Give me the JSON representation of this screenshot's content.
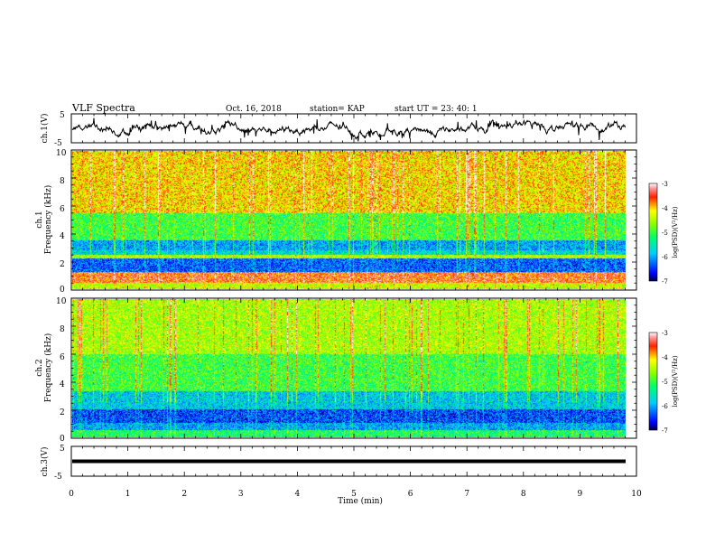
{
  "header": {
    "title": "VLF Spectra",
    "date": "Oct. 16, 2018",
    "station": "station= KAP",
    "start": "start  UT =   23: 40: 1"
  },
  "chart_data": [
    {
      "type": "line",
      "panel": "ch1-waveform",
      "ylabel": "ch.1(V)",
      "yticks": [
        "5",
        "-5"
      ],
      "ylim": [
        -5,
        5
      ],
      "xlim": [
        0,
        10
      ],
      "note_values": "noisy waveform fluctuating roughly between -3 and 3 V"
    },
    {
      "type": "heatmap",
      "panel": "ch1-spectrogram",
      "ylabel_top": "ch.1",
      "ylabel": "Frequency (kHz)",
      "yticks": [
        "0",
        "2",
        "4",
        "6",
        "8",
        "10"
      ],
      "ylim": [
        0,
        10
      ],
      "xlim": [
        0,
        9.8
      ],
      "colorbar": {
        "label": "log(PSD)(V²/Hz)",
        "ticks": [
          "-3",
          "-4",
          "-5",
          "-6",
          "-7"
        ],
        "range": [
          -7,
          -3
        ]
      },
      "bands": [
        {
          "from": 0,
          "to": 0.4,
          "level": -4.4
        },
        {
          "from": 0.4,
          "to": 1.2,
          "level": -3.6
        },
        {
          "from": 1.2,
          "to": 2.2,
          "level": -6.3
        },
        {
          "from": 2.2,
          "to": 2.5,
          "level": -4.5
        },
        {
          "from": 2.5,
          "to": 2.8,
          "level": -5.7
        },
        {
          "from": 2.8,
          "to": 3.5,
          "level": -6.0
        },
        {
          "from": 3.5,
          "to": 5.5,
          "level": -5.0
        },
        {
          "from": 5.5,
          "to": 10,
          "level": -4.1
        }
      ]
    },
    {
      "type": "heatmap",
      "panel": "ch2-spectrogram",
      "ylabel_top": "ch.2",
      "ylabel": "Frequency (kHz)",
      "yticks": [
        "0",
        "2",
        "4",
        "6",
        "8",
        "10"
      ],
      "ylim": [
        0,
        10
      ],
      "xlim": [
        0,
        9.8
      ],
      "colorbar": {
        "label": "log(PSD)(V²/Hz)",
        "ticks": [
          "-3",
          "-4",
          "-5",
          "-6",
          "-7"
        ],
        "range": [
          -7,
          -3
        ]
      },
      "bands": [
        {
          "from": 0,
          "to": 0.5,
          "level": -5.2
        },
        {
          "from": 0.5,
          "to": 1.0,
          "level": -6.0
        },
        {
          "from": 1.0,
          "to": 2.0,
          "level": -6.4
        },
        {
          "from": 2.0,
          "to": 3.3,
          "level": -5.8
        },
        {
          "from": 3.3,
          "to": 6.0,
          "level": -5.0
        },
        {
          "from": 6.0,
          "to": 10,
          "level": -4.5
        }
      ]
    },
    {
      "type": "line",
      "panel": "ch3-waveform",
      "ylabel": "ch.3(V)",
      "yticks": [
        "5",
        "-5"
      ],
      "ylim": [
        -5,
        5
      ],
      "xlim": [
        0,
        10
      ],
      "constant_value": 0.0,
      "xlabel": "Time  (min)",
      "xticks": [
        "0",
        "1",
        "2",
        "3",
        "4",
        "5",
        "6",
        "7",
        "8",
        "9",
        "10"
      ]
    }
  ]
}
